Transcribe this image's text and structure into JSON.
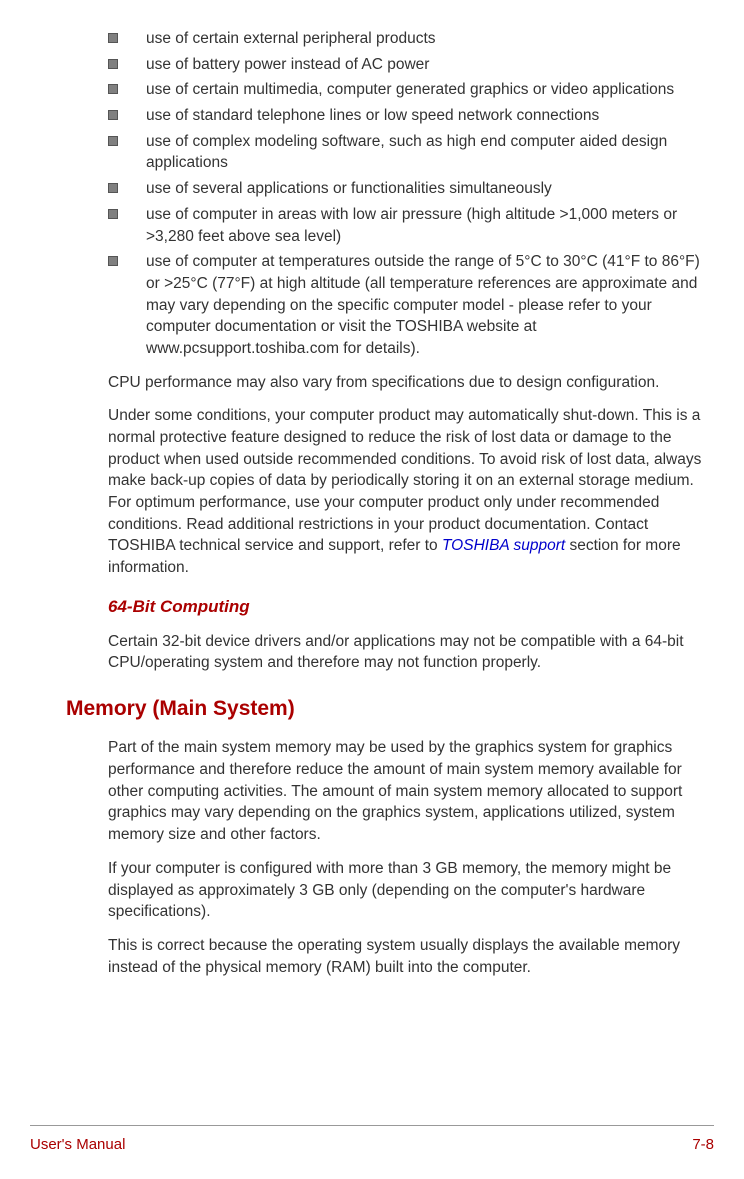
{
  "bullets": [
    "use of certain external peripheral products",
    "use of battery power instead of AC power",
    "use of certain multimedia, computer generated graphics or video applications",
    "use of standard telephone lines or low speed network connections",
    "use of complex modeling software, such as high end computer aided design applications",
    "use of several applications or functionalities simultaneously",
    "use of computer in areas with low air pressure (high altitude >1,000 meters or >3,280 feet above sea level)",
    "use of computer at temperatures outside the range of 5°C to 30°C (41°F to 86°F) or >25°C (77°F) at high altitude (all temperature references are approximate and may vary depending on the specific computer model - please refer to your computer documentation or visit the TOSHIBA website at www.pcsupport.toshiba.com for details)."
  ],
  "para1": "CPU performance may also vary from specifications due to design configuration.",
  "para2_part1": "Under some conditions, your computer product may automatically shut-down. This is a normal protective feature designed to reduce the risk of lost data or damage to the product when used outside recommended conditions. To avoid risk of lost data, always make back-up copies of data by periodically storing it on an external storage medium. For optimum performance, use your computer product only under recommended conditions. Read additional restrictions in your product documentation. Contact TOSHIBA technical service and support, refer to ",
  "para2_link": "TOSHIBA support",
  "para2_part2": " section for more information.",
  "subheading1": "64-Bit Computing",
  "para3": "Certain 32-bit device drivers and/or applications may not be compatible with a 64-bit CPU/operating system and therefore may not function properly.",
  "heading2": "Memory (Main System)",
  "para4": "Part of the main system memory may be used by the graphics system for graphics performance and therefore reduce the amount of main system memory available for other computing activities. The amount of main system memory allocated to support graphics may vary depending on the graphics system, applications utilized, system memory size and other factors.",
  "para5": "If your computer is configured with more than 3 GB memory, the memory might be displayed as approximately 3 GB only (depending on the computer's hardware specifications).",
  "para6": "This is correct because the operating system usually displays the available memory instead of the physical memory (RAM) built into the computer.",
  "footer_left": "User's Manual",
  "footer_right": "7-8",
  "colors": {
    "text": "#333333",
    "accent": "#aa0000",
    "link": "#0000cc",
    "bullet": "#808080",
    "border": "#999999"
  }
}
